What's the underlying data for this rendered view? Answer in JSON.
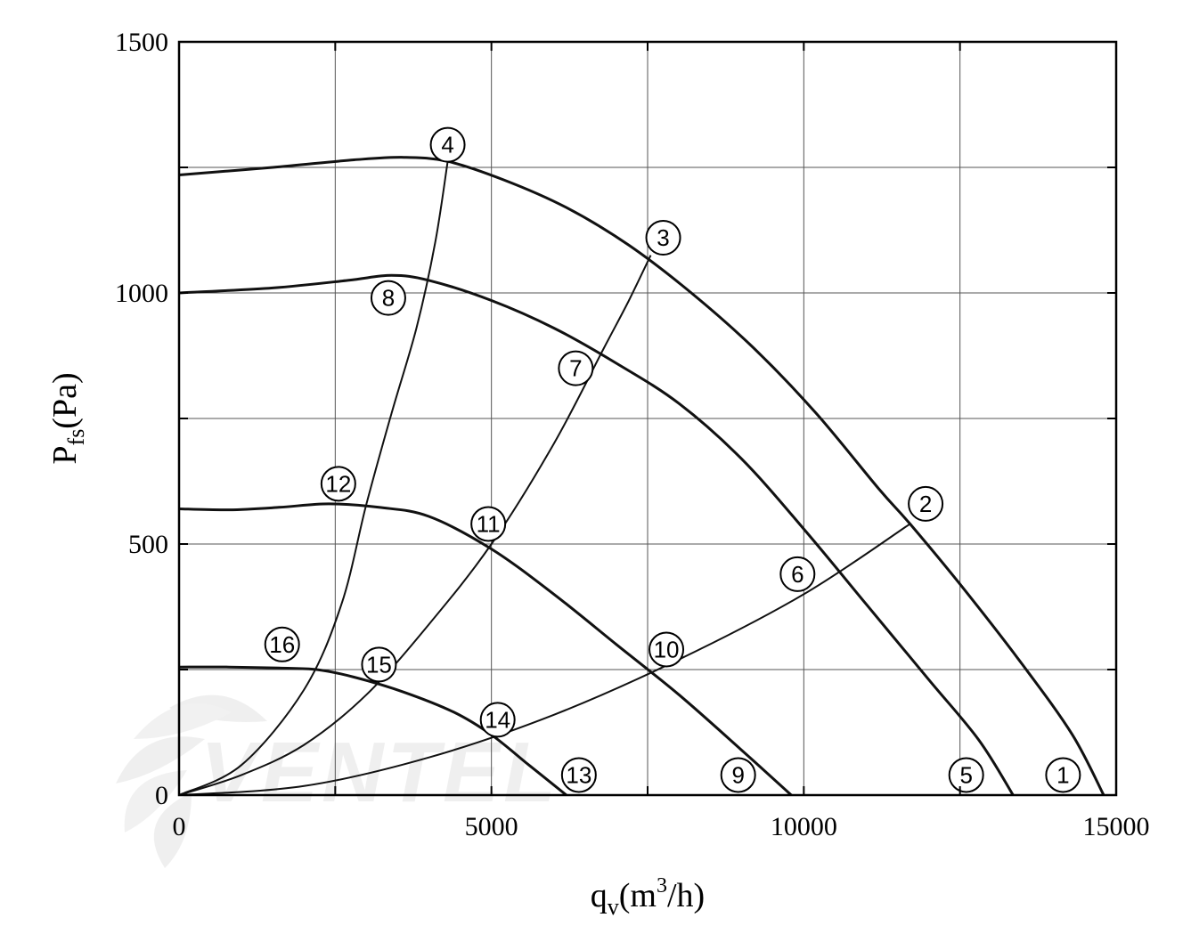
{
  "chart_data": {
    "type": "line",
    "xlim": [
      0,
      15000
    ],
    "ylim": [
      0,
      1500
    ],
    "x_ticks": [
      "0",
      "5000",
      "10000",
      "15000"
    ],
    "y_ticks": [
      "0",
      "500",
      "1000",
      "1500"
    ],
    "grid": true,
    "xlabel": {
      "base": "q",
      "sub": "v",
      "pre": "(m",
      "sup": "3",
      "post": "/h)"
    },
    "ylabel": {
      "base": "P",
      "sub": "fs",
      "post": "(Pa)"
    },
    "watermark": "VENTEL",
    "colors": {
      "line": "#111111",
      "grid": "#555555",
      "watermark": "#cfe6f5"
    },
    "fan_curves": [
      {
        "points": [
          [
            0,
            1235
          ],
          [
            1500,
            1250
          ],
          [
            2800,
            1265
          ],
          [
            3600,
            1270
          ],
          [
            4300,
            1262
          ],
          [
            5200,
            1225
          ],
          [
            6200,
            1170
          ],
          [
            7200,
            1095
          ],
          [
            8200,
            1000
          ],
          [
            9200,
            890
          ],
          [
            10200,
            760
          ],
          [
            11200,
            610
          ],
          [
            11700,
            540
          ],
          [
            12500,
            420
          ],
          [
            13500,
            260
          ],
          [
            14300,
            120
          ],
          [
            14800,
            0
          ]
        ]
      },
      {
        "points": [
          [
            0,
            1000
          ],
          [
            1500,
            1010
          ],
          [
            2700,
            1025
          ],
          [
            3400,
            1035
          ],
          [
            4000,
            1025
          ],
          [
            5000,
            985
          ],
          [
            6000,
            930
          ],
          [
            7000,
            860
          ],
          [
            8000,
            780
          ],
          [
            9000,
            670
          ],
          [
            10000,
            530
          ],
          [
            11000,
            380
          ],
          [
            12000,
            230
          ],
          [
            12800,
            110
          ],
          [
            13350,
            0
          ]
        ]
      },
      {
        "points": [
          [
            0,
            570
          ],
          [
            800,
            568
          ],
          [
            1600,
            573
          ],
          [
            2400,
            580
          ],
          [
            3200,
            573
          ],
          [
            4000,
            555
          ],
          [
            5000,
            490
          ],
          [
            6000,
            400
          ],
          [
            7000,
            300
          ],
          [
            8000,
            200
          ],
          [
            9000,
            90
          ],
          [
            9800,
            0
          ]
        ]
      },
      {
        "points": [
          [
            0,
            255
          ],
          [
            800,
            255
          ],
          [
            1600,
            253
          ],
          [
            2200,
            250
          ],
          [
            2800,
            235
          ],
          [
            3600,
            205
          ],
          [
            4400,
            165
          ],
          [
            5000,
            120
          ],
          [
            5600,
            60
          ],
          [
            6200,
            0
          ]
        ]
      }
    ],
    "system_curves": [
      {
        "points": [
          [
            0,
            0
          ],
          [
            1000,
            60
          ],
          [
            2000,
            210
          ],
          [
            2600,
            380
          ],
          [
            3000,
            580
          ],
          [
            3400,
            760
          ],
          [
            3800,
            930
          ],
          [
            4100,
            1100
          ],
          [
            4300,
            1262
          ]
        ]
      },
      {
        "points": [
          [
            0,
            0
          ],
          [
            1000,
            40
          ],
          [
            2000,
            100
          ],
          [
            3000,
            200
          ],
          [
            4000,
            340
          ],
          [
            5000,
            500
          ],
          [
            6000,
            700
          ],
          [
            6800,
            890
          ],
          [
            7200,
            985
          ],
          [
            7550,
            1075
          ]
        ]
      },
      {
        "points": [
          [
            0,
            0
          ],
          [
            2000,
            18
          ],
          [
            4000,
            75
          ],
          [
            6000,
            160
          ],
          [
            8000,
            270
          ],
          [
            10000,
            400
          ],
          [
            11700,
            540
          ]
        ]
      }
    ],
    "markers": [
      {
        "label": "1",
        "x": 14150,
        "y": 40
      },
      {
        "label": "2",
        "x": 11950,
        "y": 580
      },
      {
        "label": "3",
        "x": 7750,
        "y": 1110
      },
      {
        "label": "4",
        "x": 4300,
        "y": 1295
      },
      {
        "label": "5",
        "x": 12600,
        "y": 40
      },
      {
        "label": "6",
        "x": 9900,
        "y": 440
      },
      {
        "label": "7",
        "x": 6350,
        "y": 850
      },
      {
        "label": "8",
        "x": 3350,
        "y": 990
      },
      {
        "label": "9",
        "x": 8950,
        "y": 40
      },
      {
        "label": "10",
        "x": 7800,
        "y": 290
      },
      {
        "label": "11",
        "x": 4950,
        "y": 540
      },
      {
        "label": "12",
        "x": 2550,
        "y": 620
      },
      {
        "label": "13",
        "x": 6400,
        "y": 40
      },
      {
        "label": "14",
        "x": 5100,
        "y": 150
      },
      {
        "label": "15",
        "x": 3200,
        "y": 260
      },
      {
        "label": "16",
        "x": 1650,
        "y": 300
      }
    ]
  }
}
